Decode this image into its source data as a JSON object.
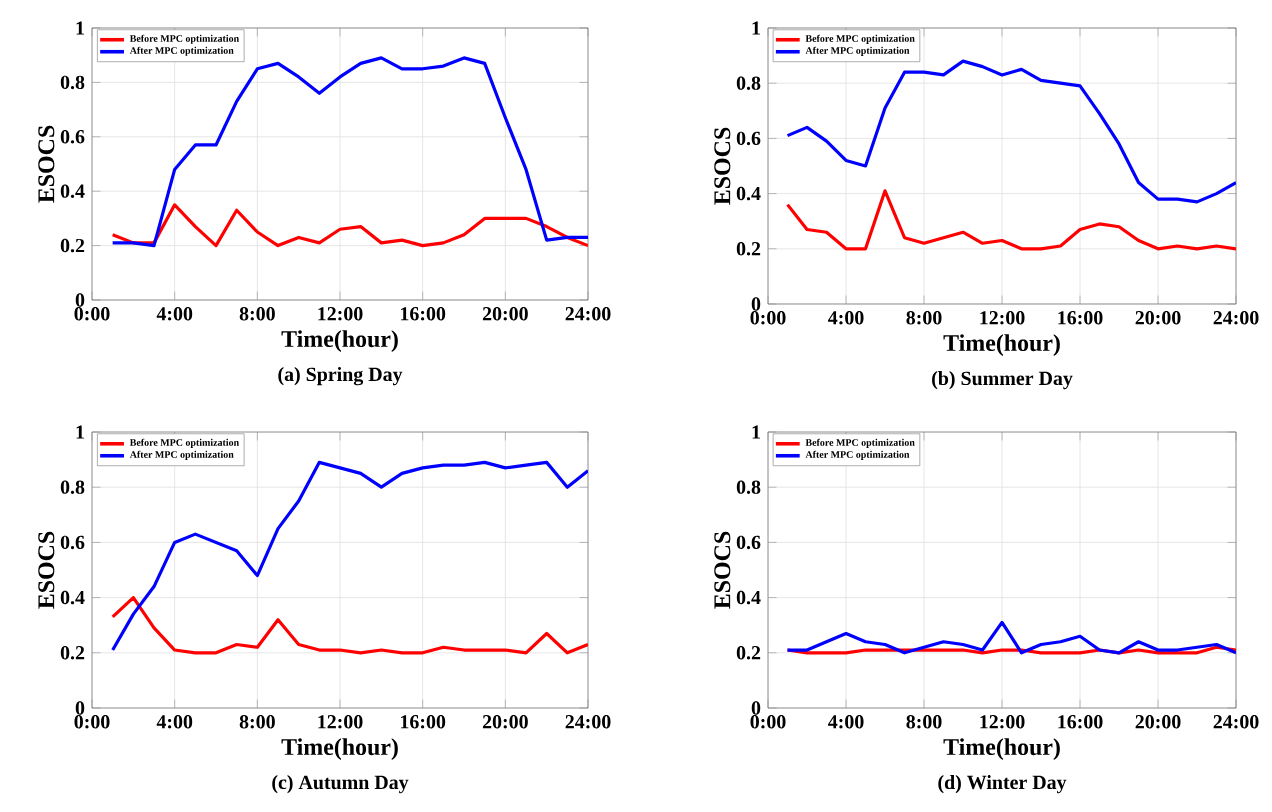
{
  "chart_data": [
    {
      "type": "line",
      "title": "(a) Spring Day",
      "xlabel": "Time(hour)",
      "ylabel": "ESOCS",
      "x": [
        1,
        2,
        3,
        4,
        5,
        6,
        7,
        8,
        9,
        10,
        11,
        12,
        13,
        14,
        15,
        16,
        17,
        18,
        19,
        20,
        21,
        22,
        23,
        24
      ],
      "xlim": [
        0,
        24
      ],
      "xticks": [
        {
          "value": 0,
          "label": "0:00"
        },
        {
          "value": 4,
          "label": "4:00"
        },
        {
          "value": 8,
          "label": "8:00"
        },
        {
          "value": 12,
          "label": "12:00"
        },
        {
          "value": 16,
          "label": "16:00"
        },
        {
          "value": 20,
          "label": "20:00"
        },
        {
          "value": 24,
          "label": "24:00"
        }
      ],
      "ylim": [
        0,
        1
      ],
      "yticks": [
        0,
        0.2,
        0.4,
        0.6,
        0.8,
        1
      ],
      "grid": true,
      "legend": "top left",
      "marker": "none",
      "line_style": "solid",
      "series": [
        {
          "name": "Before MPC optimization",
          "color": "#ff0000",
          "values": [
            0.24,
            0.21,
            0.21,
            0.35,
            0.27,
            0.2,
            0.33,
            0.25,
            0.2,
            0.23,
            0.21,
            0.26,
            0.27,
            0.21,
            0.22,
            0.2,
            0.21,
            0.24,
            0.3,
            0.3,
            0.3,
            0.27,
            0.23,
            0.2
          ]
        },
        {
          "name": "After MPC optimization",
          "color": "#0000ff",
          "values": [
            0.21,
            0.21,
            0.2,
            0.48,
            0.57,
            0.57,
            0.73,
            0.85,
            0.87,
            0.82,
            0.76,
            0.82,
            0.87,
            0.89,
            0.85,
            0.85,
            0.86,
            0.89,
            0.87,
            0.67,
            0.48,
            0.22,
            0.23,
            0.23
          ]
        }
      ]
    },
    {
      "type": "line",
      "title": "(b) Summer Day",
      "xlabel": "Time(hour)",
      "ylabel": "ESOCS",
      "x": [
        1,
        2,
        3,
        4,
        5,
        6,
        7,
        8,
        9,
        10,
        11,
        12,
        13,
        14,
        15,
        16,
        17,
        18,
        19,
        20,
        21,
        22,
        23,
        24
      ],
      "xlim": [
        0,
        24
      ],
      "xticks": [
        {
          "value": 0,
          "label": "0:00"
        },
        {
          "value": 4,
          "label": "4:00"
        },
        {
          "value": 8,
          "label": "8:00"
        },
        {
          "value": 12,
          "label": "12:00"
        },
        {
          "value": 16,
          "label": "16:00"
        },
        {
          "value": 20,
          "label": "20:00"
        },
        {
          "value": 24,
          "label": "24:00"
        }
      ],
      "ylim": [
        0,
        1
      ],
      "yticks": [
        0,
        0.2,
        0.4,
        0.6,
        0.8,
        1
      ],
      "grid": true,
      "legend": "top left",
      "marker": "none",
      "line_style": "solid",
      "series": [
        {
          "name": "Before MPC optimization",
          "color": "#ff0000",
          "values": [
            0.36,
            0.27,
            0.26,
            0.2,
            0.2,
            0.41,
            0.24,
            0.22,
            0.24,
            0.26,
            0.22,
            0.23,
            0.2,
            0.2,
            0.21,
            0.27,
            0.29,
            0.28,
            0.23,
            0.2,
            0.21,
            0.2,
            0.21,
            0.2
          ]
        },
        {
          "name": "After MPC optimization",
          "color": "#0000ff",
          "values": [
            0.61,
            0.64,
            0.59,
            0.52,
            0.5,
            0.71,
            0.84,
            0.84,
            0.83,
            0.88,
            0.86,
            0.83,
            0.85,
            0.81,
            0.8,
            0.79,
            0.69,
            0.58,
            0.44,
            0.38,
            0.38,
            0.37,
            0.4,
            0.44
          ]
        }
      ]
    },
    {
      "type": "line",
      "title": "(c) Autumn Day",
      "xlabel": "Time(hour)",
      "ylabel": "ESOCS",
      "x": [
        1,
        2,
        3,
        4,
        5,
        6,
        7,
        8,
        9,
        10,
        11,
        12,
        13,
        14,
        15,
        16,
        17,
        18,
        19,
        20,
        21,
        22,
        23,
        24
      ],
      "xlim": [
        0,
        24
      ],
      "xticks": [
        {
          "value": 0,
          "label": "0:00"
        },
        {
          "value": 4,
          "label": "4:00"
        },
        {
          "value": 8,
          "label": "8:00"
        },
        {
          "value": 12,
          "label": "12:00"
        },
        {
          "value": 16,
          "label": "16:00"
        },
        {
          "value": 20,
          "label": "20:00"
        },
        {
          "value": 24,
          "label": "24:00"
        }
      ],
      "ylim": [
        0,
        1
      ],
      "yticks": [
        0,
        0.2,
        0.4,
        0.6,
        0.8,
        1
      ],
      "grid": true,
      "legend": "top left",
      "marker": "none",
      "line_style": "solid",
      "series": [
        {
          "name": "Before MPC optimization",
          "color": "#ff0000",
          "values": [
            0.33,
            0.4,
            0.29,
            0.21,
            0.2,
            0.2,
            0.23,
            0.22,
            0.32,
            0.23,
            0.21,
            0.21,
            0.2,
            0.21,
            0.2,
            0.2,
            0.22,
            0.21,
            0.21,
            0.21,
            0.2,
            0.27,
            0.2,
            0.23
          ]
        },
        {
          "name": "After MPC optimization",
          "color": "#0000ff",
          "values": [
            0.21,
            0.34,
            0.44,
            0.6,
            0.63,
            0.6,
            0.57,
            0.48,
            0.65,
            0.75,
            0.89,
            0.87,
            0.85,
            0.8,
            0.85,
            0.87,
            0.88,
            0.88,
            0.89,
            0.87,
            0.88,
            0.89,
            0.8,
            0.86
          ]
        }
      ]
    },
    {
      "type": "line",
      "title": "(d) Winter Day",
      "xlabel": "Time(hour)",
      "ylabel": "ESOCS",
      "x": [
        1,
        2,
        3,
        4,
        5,
        6,
        7,
        8,
        9,
        10,
        11,
        12,
        13,
        14,
        15,
        16,
        17,
        18,
        19,
        20,
        21,
        22,
        23,
        24
      ],
      "xlim": [
        0,
        24
      ],
      "xticks": [
        {
          "value": 0,
          "label": "0:00"
        },
        {
          "value": 4,
          "label": "4:00"
        },
        {
          "value": 8,
          "label": "8:00"
        },
        {
          "value": 12,
          "label": "12:00"
        },
        {
          "value": 16,
          "label": "16:00"
        },
        {
          "value": 20,
          "label": "20:00"
        },
        {
          "value": 24,
          "label": "24:00"
        }
      ],
      "ylim": [
        0,
        1
      ],
      "yticks": [
        0,
        0.2,
        0.4,
        0.6,
        0.8,
        1
      ],
      "grid": true,
      "legend": "top left",
      "marker": "none",
      "line_style": "solid",
      "series": [
        {
          "name": "Before MPC optimization",
          "color": "#ff0000",
          "values": [
            0.21,
            0.2,
            0.2,
            0.2,
            0.21,
            0.21,
            0.21,
            0.21,
            0.21,
            0.21,
            0.2,
            0.21,
            0.21,
            0.2,
            0.2,
            0.2,
            0.21,
            0.2,
            0.21,
            0.2,
            0.2,
            0.2,
            0.22,
            0.21
          ]
        },
        {
          "name": "After MPC optimization",
          "color": "#0000ff",
          "values": [
            0.21,
            0.21,
            0.24,
            0.27,
            0.24,
            0.23,
            0.2,
            0.22,
            0.24,
            0.23,
            0.21,
            0.31,
            0.2,
            0.23,
            0.24,
            0.26,
            0.21,
            0.2,
            0.24,
            0.21,
            0.21,
            0.22,
            0.23,
            0.2
          ]
        }
      ]
    }
  ]
}
